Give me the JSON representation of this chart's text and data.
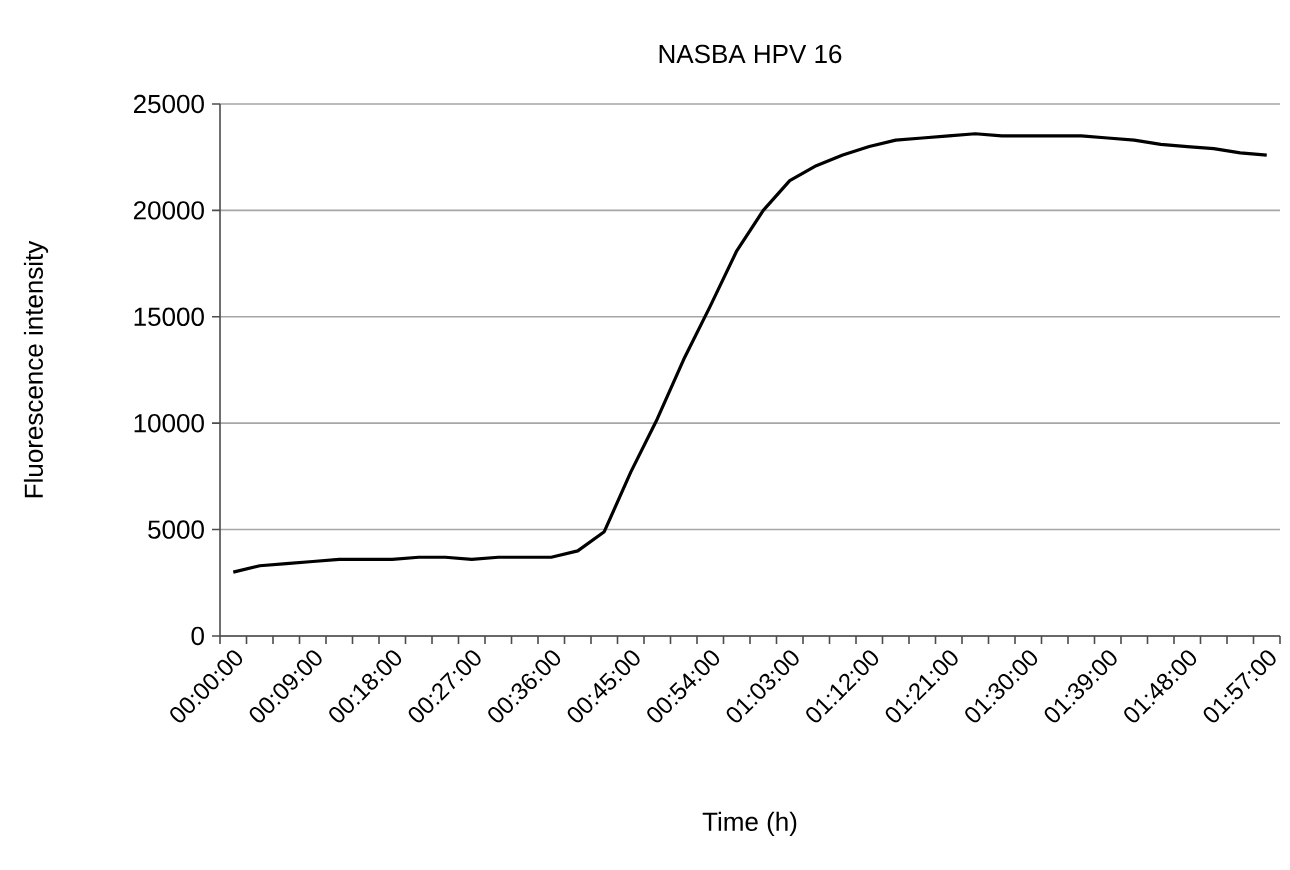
{
  "chart_data": {
    "type": "line",
    "title": "NASBA HPV 16",
    "xlabel": "Time (h)",
    "ylabel": "Fluorescence intensity",
    "categories": [
      "00:00:00",
      null,
      null,
      "00:09:00",
      null,
      null,
      "00:18:00",
      null,
      null,
      "00:27:00",
      null,
      null,
      "00:36:00",
      null,
      null,
      "00:45:00",
      null,
      null,
      "00:54:00",
      null,
      null,
      "01:03:00",
      null,
      null,
      "01:12:00",
      null,
      null,
      "01:21:00",
      null,
      null,
      "01:30:00",
      null,
      null,
      "01:39:00",
      null,
      null,
      "01:48:00",
      null,
      null,
      "01:57:00"
    ],
    "series": [
      {
        "color": "#000000",
        "values": [
          3000,
          3300,
          3400,
          3500,
          3600,
          3600,
          3600,
          3700,
          3700,
          3600,
          3700,
          3700,
          3700,
          4000,
          4900,
          7700,
          10200,
          13000,
          15500,
          18100,
          20000,
          21400,
          22100,
          22600,
          23000,
          23300,
          23400,
          23500,
          23600,
          23500,
          23500,
          23500,
          23500,
          23400,
          23300,
          23100,
          23000,
          22900,
          22700,
          22600
        ]
      }
    ],
    "ylim": [
      0,
      25000
    ],
    "yticks": [
      0,
      5000,
      10000,
      15000,
      20000,
      25000
    ],
    "grid": "y"
  }
}
